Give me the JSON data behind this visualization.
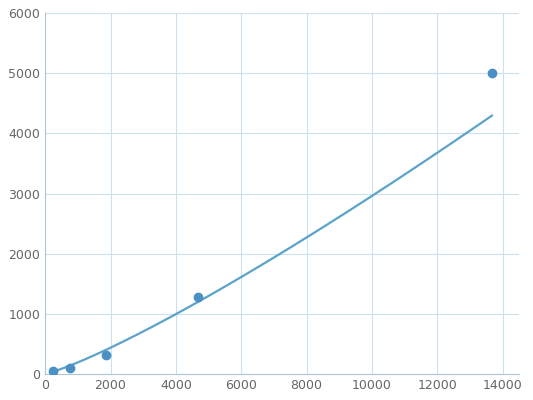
{
  "x": [
    250,
    750,
    1875,
    4688,
    13671
  ],
  "y": [
    50,
    100,
    320,
    1280,
    5000
  ],
  "line_color": "#5ba3c9",
  "marker_color": "#4a90c4",
  "marker_size": 6,
  "xlim": [
    0,
    14500
  ],
  "ylim": [
    0,
    6000
  ],
  "xticks": [
    0,
    2000,
    4000,
    6000,
    8000,
    10000,
    12000,
    14000
  ],
  "yticks": [
    0,
    1000,
    2000,
    3000,
    4000,
    5000,
    6000
  ],
  "grid_color": "#cce0ee",
  "background_color": "#ffffff",
  "spine_color": "#b0c4d4",
  "tick_label_color": "#666666",
  "tick_label_size": 9,
  "line_width": 1.6
}
